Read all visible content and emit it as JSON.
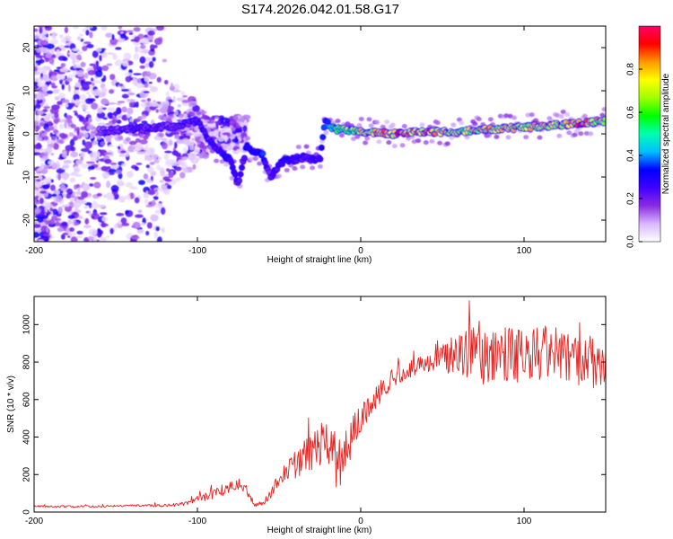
{
  "title": "S174.2026.042.01.58.G17",
  "chart_data": [
    {
      "type": "heatmap",
      "name": "spectrogram",
      "xlabel": "Height of straight line (km)",
      "ylabel": "Frequency (Hz)",
      "xlim": [
        -200,
        150
      ],
      "ylim": [
        -25,
        25
      ],
      "xticks": [
        -200,
        -100,
        0,
        100
      ],
      "yticks": [
        -20,
        -10,
        0,
        10,
        20
      ],
      "colorbar": {
        "label": "Normalized spectral amplitude",
        "range": [
          0,
          1
        ],
        "ticks": [
          "0.0",
          "0.2",
          "0.4",
          "0.6",
          "0.8"
        ],
        "colors": [
          "#ffffff",
          "#d8b8ff",
          "#8a2be2",
          "#4000ff",
          "#0000ff",
          "#00bfff",
          "#00ffb0",
          "#00ff00",
          "#a0ff00",
          "#ffff00",
          "#ff9900",
          "#ff0000",
          "#ff0066"
        ]
      },
      "ridge": {
        "x": [
          -200,
          -140,
          -110,
          -100,
          -90,
          -80,
          -75,
          -70,
          -65,
          -60,
          -55,
          -50,
          -45,
          -40,
          -35,
          -25,
          -22,
          -18,
          -15,
          -10,
          0,
          20,
          40,
          60,
          80,
          100,
          120,
          135,
          150
        ],
        "frequency": [
          0,
          1,
          2,
          3,
          -3,
          -6,
          -12,
          -3,
          -4,
          -5,
          -10,
          -7,
          -6,
          -6,
          -5.5,
          -6,
          3,
          1.5,
          1,
          1,
          0.5,
          0,
          0.5,
          0.5,
          1,
          1.5,
          2,
          2.5,
          3
        ],
        "amplitude": [
          0.1,
          0.2,
          0.2,
          0.25,
          0.25,
          0.3,
          0.2,
          0.3,
          0.35,
          0.35,
          0.2,
          0.3,
          0.3,
          0.3,
          0.25,
          0.25,
          0.4,
          0.5,
          0.55,
          0.65,
          0.75,
          0.9,
          0.85,
          0.75,
          0.8,
          0.75,
          0.8,
          0.85,
          0.75
        ]
      }
    },
    {
      "type": "line",
      "name": "snr",
      "xlabel": "Height of straight line (km)",
      "ylabel": "SNR (10 * v/v)",
      "xlim": [
        -200,
        150
      ],
      "ylim": [
        0,
        1150
      ],
      "xticks": [
        -200,
        -100,
        0,
        100
      ],
      "yticks": [
        0,
        200,
        400,
        600,
        800,
        1000
      ],
      "color": "#e8201e",
      "series": [
        {
          "name": "SNR",
          "x": [
            -200,
            -180,
            -160,
            -140,
            -120,
            -110,
            -100,
            -90,
            -80,
            -75,
            -70,
            -65,
            -60,
            -55,
            -50,
            -45,
            -40,
            -35,
            -30,
            -25,
            -20,
            -15,
            -12,
            -10,
            -5,
            0,
            10,
            20,
            30,
            40,
            50,
            60,
            70,
            80,
            90,
            100,
            110,
            120,
            130,
            140,
            150
          ],
          "y": [
            30,
            30,
            30,
            35,
            35,
            40,
            70,
            100,
            130,
            150,
            120,
            40,
            50,
            100,
            180,
            220,
            250,
            290,
            320,
            350,
            350,
            330,
            250,
            300,
            420,
            500,
            620,
            720,
            760,
            800,
            820,
            840,
            840,
            820,
            840,
            830,
            850,
            840,
            810,
            820,
            790
          ],
          "spread": [
            10,
            10,
            10,
            10,
            15,
            20,
            40,
            60,
            60,
            60,
            60,
            20,
            30,
            60,
            80,
            120,
            150,
            180,
            200,
            250,
            280,
            400,
            300,
            250,
            200,
            150,
            120,
            100,
            100,
            100,
            150,
            250,
            300,
            300,
            300,
            300,
            300,
            300,
            300,
            300,
            300
          ]
        }
      ]
    }
  ]
}
